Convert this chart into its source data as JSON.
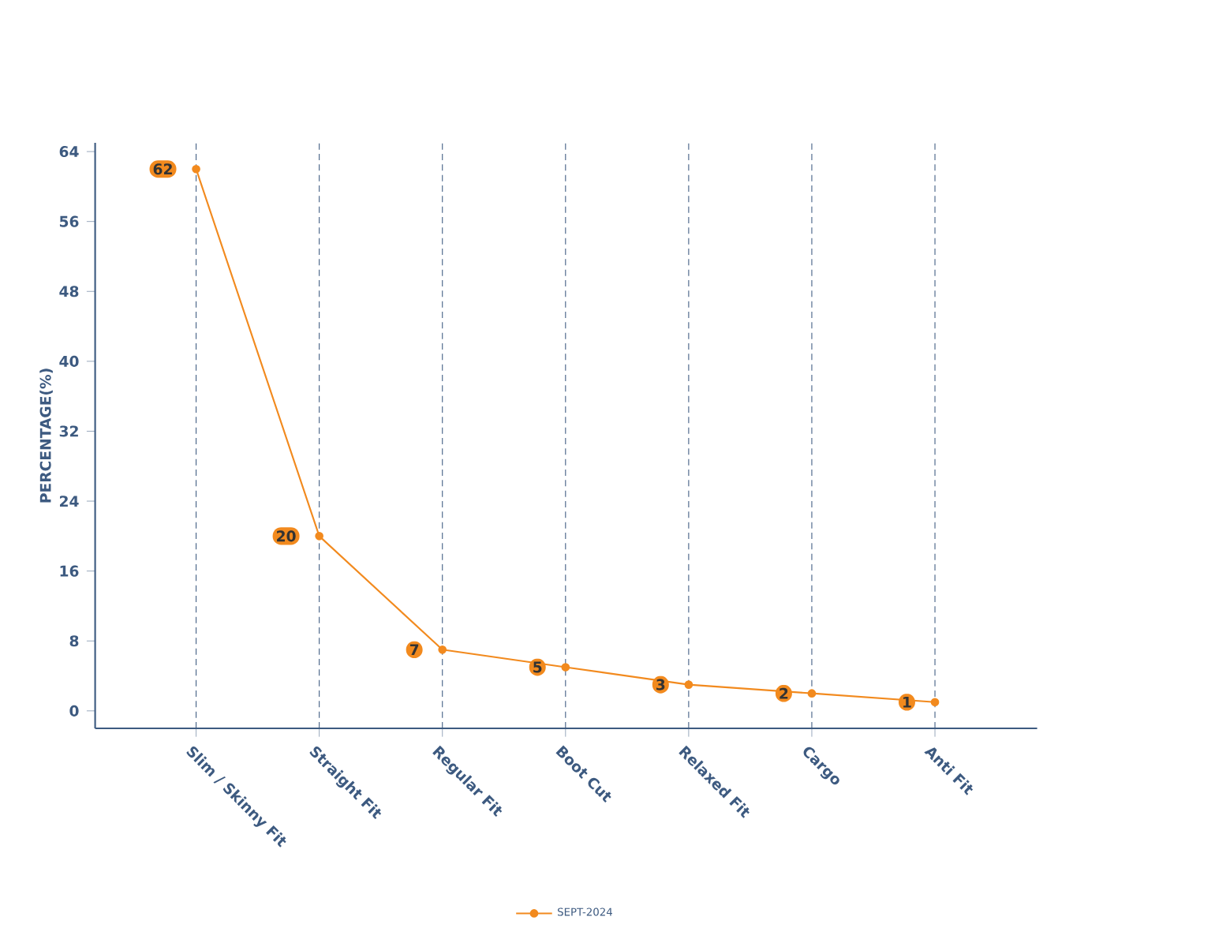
{
  "chart_data": {
    "type": "line",
    "ylabel": "PERCENTAGE(%)",
    "categories": [
      "Slim / Skinny Fit",
      "Straight Fit",
      "Regular Fit",
      "Boot Cut",
      "Relaxed Fit",
      "Cargo",
      "Anti Fit"
    ],
    "series": [
      {
        "name": "SEPT-2024",
        "color": "#f28a1e",
        "values": [
          62,
          20,
          7,
          5,
          3,
          2,
          1
        ]
      }
    ],
    "ylim": [
      -2,
      65
    ],
    "yticks": [
      0,
      8,
      16,
      24,
      32,
      40,
      48,
      56,
      64
    ],
    "grid": "x",
    "legend": "bottom",
    "marker": "circle",
    "data_labels": true
  }
}
